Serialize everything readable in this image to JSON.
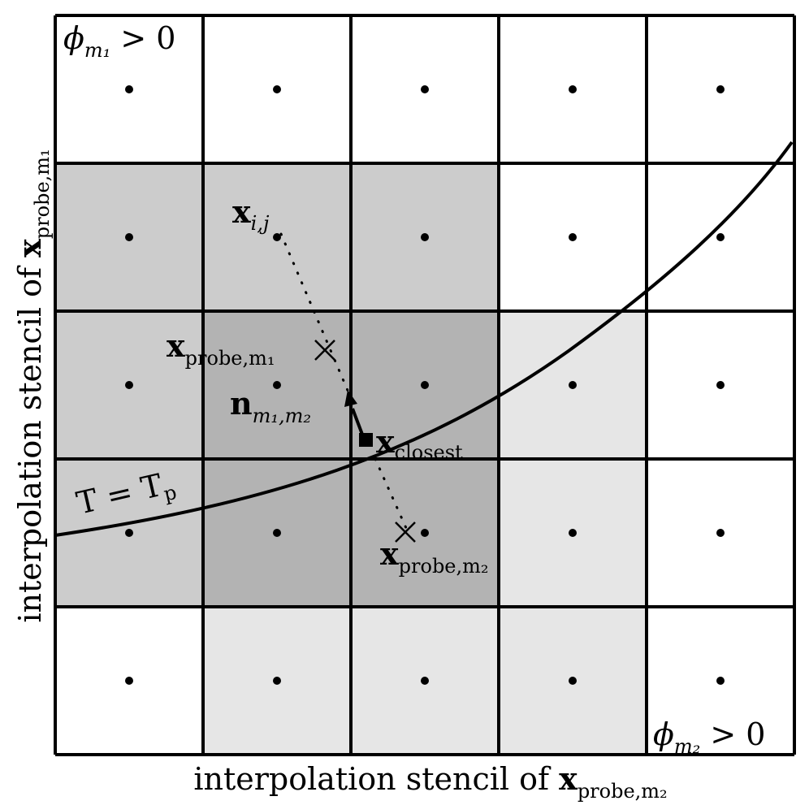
{
  "labels": {
    "phi_m1": "ϕ",
    "phi_m1_sub": "m₁",
    "phi_m1_rest": " > 0",
    "phi_m2": "ϕ",
    "phi_m2_sub": "m₂",
    "phi_m2_rest": " > 0",
    "x_ij": "x",
    "x_ij_sub": "i,j",
    "x_probe_m1": "x",
    "x_probe_m1_sub": "probe,m₁",
    "n_m1m2": "n",
    "n_m1m2_sub": "m₁,m₂",
    "x_closest": "x",
    "x_closest_sub": "closest",
    "x_probe_m2": "x",
    "x_probe_m2_sub": "probe,m₂",
    "isotherm": "T = T",
    "isotherm_sub": "p"
  },
  "axes": {
    "x_label_text": "interpolation stencil of ",
    "x_label_vec": "x",
    "x_label_sub": "probe,m₂",
    "y_label_text": "interpolation stencil of ",
    "y_label_vec": "x",
    "y_label_sub": "probe,m₁"
  },
  "grid": {
    "rows": 5,
    "cols": 5,
    "shading": [
      [
        "white",
        "white",
        "white",
        "white",
        "white"
      ],
      [
        "mid",
        "mid",
        "mid",
        "white",
        "white"
      ],
      [
        "mid",
        "dark",
        "dark",
        "light",
        "white"
      ],
      [
        "mid",
        "dark",
        "dark",
        "light",
        "white"
      ],
      [
        "white",
        "light",
        "light",
        "light",
        "white"
      ]
    ]
  },
  "colors": {
    "white": "#ffffff",
    "light": "#e6e6e6",
    "mid": "#cccccc",
    "dark": "#b3b3b3",
    "ink": "#000000"
  }
}
